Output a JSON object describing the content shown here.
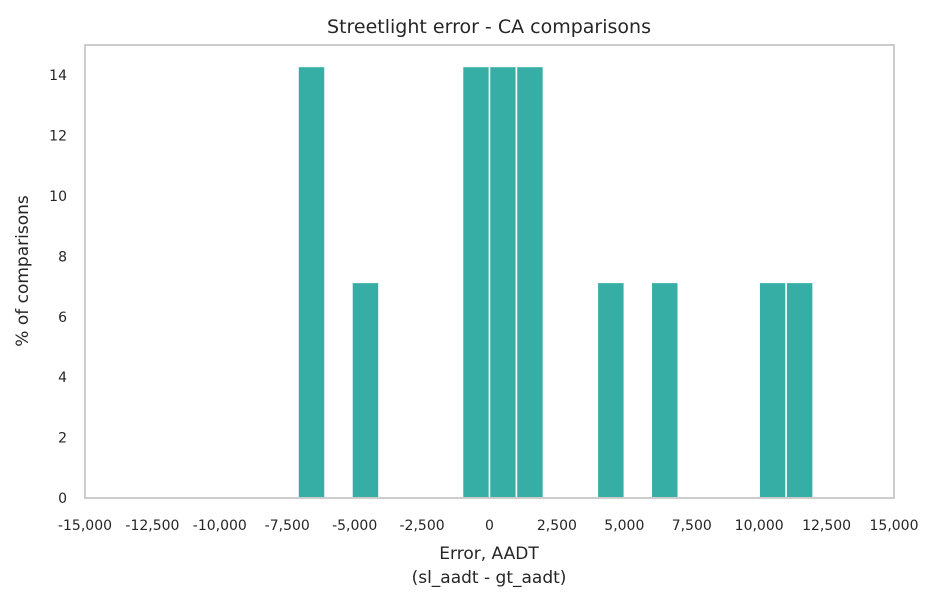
{
  "chart_data": {
    "type": "bar",
    "title": "Streetlight error - CA comparisons",
    "xlabel": "Error, AADT",
    "xlabel_sub": "(sl_aadt - gt_aadt)",
    "ylabel": "% of comparisons",
    "xlim": [
      -15000,
      15000
    ],
    "ylim": [
      0,
      15
    ],
    "grid": false,
    "bar_color": "#37aea5",
    "bin_width": 1000,
    "xticks": [
      -15000,
      -12500,
      -10000,
      -7500,
      -5000,
      -2500,
      0,
      2500,
      5000,
      7500,
      10000,
      12500,
      15000
    ],
    "xtick_labels": [
      "-15,000",
      "-12,500",
      "-10,000",
      "-7,500",
      "-5,000",
      "-2,500",
      "0",
      "2,500",
      "5,000",
      "7,500",
      "10,000",
      "12,500",
      "15,000"
    ],
    "yticks": [
      0,
      2,
      4,
      6,
      8,
      10,
      12,
      14
    ],
    "ytick_labels": [
      "0",
      "2",
      "4",
      "6",
      "8",
      "10",
      "12",
      "14"
    ],
    "bins": [
      {
        "start": -7100,
        "end": -6100,
        "value": 14.29
      },
      {
        "start": -5100,
        "end": -4100,
        "value": 7.14
      },
      {
        "start": -1000,
        "end": 0,
        "value": 14.29
      },
      {
        "start": 0,
        "end": 1000,
        "value": 14.29
      },
      {
        "start": 1000,
        "end": 2000,
        "value": 14.29
      },
      {
        "start": 4000,
        "end": 5000,
        "value": 7.14
      },
      {
        "start": 6000,
        "end": 7000,
        "value": 7.14
      },
      {
        "start": 10000,
        "end": 11000,
        "value": 7.14
      },
      {
        "start": 11000,
        "end": 12000,
        "value": 7.14
      }
    ]
  }
}
